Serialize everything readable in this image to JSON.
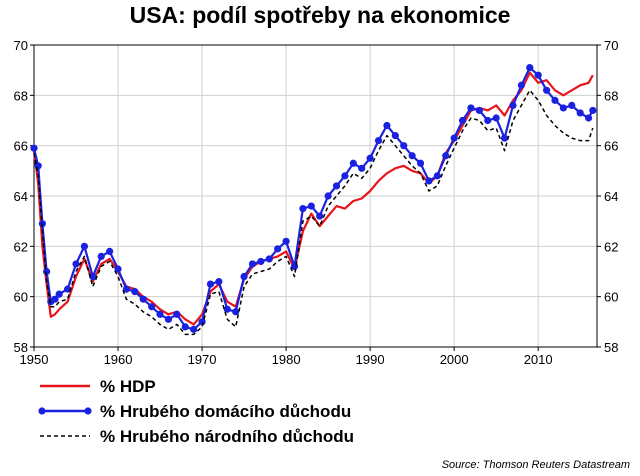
{
  "chart_data": {
    "type": "line",
    "title": "USA: podíl spotřeby na ekonomice",
    "source": "Source: Thomson Reuters Datastream",
    "xlim": [
      1950,
      2017
    ],
    "ylim": [
      58,
      70
    ],
    "x_ticks": [
      "1950",
      "1960",
      "1970",
      "1980",
      "1990",
      "2000",
      "2010"
    ],
    "y_ticks": [
      "58",
      "60",
      "62",
      "64",
      "66",
      "68",
      "70"
    ],
    "grid": true,
    "legend_position": "bottom-left",
    "series": [
      {
        "name": "% HDP",
        "color": "#e8141c",
        "style": "solid",
        "x": [
          1950,
          1950.5,
          1951,
          1951.5,
          1952,
          1952.5,
          1953,
          1954,
          1955,
          1956,
          1957,
          1958,
          1959,
          1960,
          1961,
          1962,
          1963,
          1964,
          1965,
          1966,
          1967,
          1968,
          1969,
          1970,
          1971,
          1972,
          1973,
          1974,
          1975,
          1976,
          1977,
          1978,
          1979,
          1980,
          1981,
          1982,
          1983,
          1984,
          1985,
          1986,
          1987,
          1988,
          1989,
          1990,
          1991,
          1992,
          1993,
          1994,
          1995,
          1996,
          1997,
          1998,
          1999,
          2000,
          2001,
          2002,
          2003,
          2004,
          2005,
          2006,
          2007,
          2008,
          2009,
          2010,
          2011,
          2012,
          2013,
          2014,
          2015,
          2016,
          2016.5
        ],
        "y": [
          65.8,
          64.5,
          62.0,
          60.5,
          59.2,
          59.3,
          59.5,
          59.8,
          60.8,
          61.5,
          60.6,
          61.3,
          61.5,
          61.0,
          60.4,
          60.3,
          60.0,
          59.8,
          59.5,
          59.3,
          59.4,
          59.1,
          58.9,
          59.3,
          60.2,
          60.5,
          59.8,
          59.6,
          60.7,
          61.2,
          61.4,
          61.5,
          61.6,
          61.8,
          61.1,
          62.6,
          63.3,
          62.8,
          63.2,
          63.6,
          63.5,
          63.8,
          63.9,
          64.2,
          64.6,
          64.9,
          65.1,
          65.2,
          65.0,
          64.9,
          64.5,
          64.8,
          65.7,
          66.2,
          66.8,
          67.4,
          67.5,
          67.4,
          67.6,
          67.2,
          67.8,
          68.2,
          68.9,
          68.5,
          68.6,
          68.2,
          68.0,
          68.2,
          68.4,
          68.5,
          68.8
        ]
      },
      {
        "name": "% Hrubého domácího důchodu",
        "color": "#1a22e0",
        "style": "solid-markers",
        "x": [
          1950,
          1950.5,
          1951,
          1951.5,
          1952,
          1952.5,
          1953,
          1954,
          1955,
          1956,
          1957,
          1958,
          1959,
          1960,
          1961,
          1962,
          1963,
          1964,
          1965,
          1966,
          1967,
          1968,
          1969,
          1970,
          1971,
          1972,
          1973,
          1974,
          1975,
          1976,
          1977,
          1978,
          1979,
          1980,
          1981,
          1982,
          1983,
          1984,
          1985,
          1986,
          1987,
          1988,
          1989,
          1990,
          1991,
          1992,
          1993,
          1994,
          1995,
          1996,
          1997,
          1998,
          1999,
          2000,
          2001,
          2002,
          2003,
          2004,
          2005,
          2006,
          2007,
          2008,
          2009,
          2010,
          2011,
          2012,
          2013,
          2014,
          2015,
          2016,
          2016.5
        ],
        "y": [
          65.9,
          65.2,
          62.9,
          61.0,
          59.8,
          59.9,
          60.1,
          60.3,
          61.3,
          62.0,
          60.8,
          61.6,
          61.8,
          61.1,
          60.3,
          60.2,
          59.9,
          59.6,
          59.3,
          59.1,
          59.3,
          58.8,
          58.7,
          59.0,
          60.5,
          60.6,
          59.5,
          59.4,
          60.8,
          61.3,
          61.4,
          61.5,
          61.9,
          62.2,
          61.2,
          63.5,
          63.6,
          63.2,
          64.0,
          64.4,
          64.8,
          65.3,
          65.1,
          65.5,
          66.2,
          66.8,
          66.4,
          66.0,
          65.6,
          65.3,
          64.6,
          64.8,
          65.6,
          66.3,
          67.0,
          67.5,
          67.4,
          67.0,
          67.1,
          66.3,
          67.6,
          68.4,
          69.1,
          68.8,
          68.2,
          67.8,
          67.5,
          67.6,
          67.3,
          67.1,
          67.4
        ]
      },
      {
        "name": "% Hrubého národního důchodu",
        "color": "#000000",
        "style": "dashed",
        "x": [
          1950,
          1950.5,
          1951,
          1951.5,
          1952,
          1952.5,
          1953,
          1954,
          1955,
          1956,
          1957,
          1958,
          1959,
          1960,
          1961,
          1962,
          1963,
          1964,
          1965,
          1966,
          1967,
          1968,
          1969,
          1970,
          1971,
          1972,
          1973,
          1974,
          1975,
          1976,
          1977,
          1978,
          1979,
          1980,
          1981,
          1982,
          1983,
          1984,
          1985,
          1986,
          1987,
          1988,
          1989,
          1990,
          1991,
          1992,
          1993,
          1994,
          1995,
          1996,
          1997,
          1998,
          1999,
          2000,
          2001,
          2002,
          2003,
          2004,
          2005,
          2006,
          2007,
          2008,
          2009,
          2010,
          2011,
          2012,
          2013,
          2014,
          2015,
          2016,
          2016.5
        ],
        "y": [
          65.7,
          64.8,
          62.6,
          60.6,
          59.6,
          59.6,
          59.8,
          59.9,
          61.0,
          61.6,
          60.4,
          61.2,
          61.4,
          60.8,
          59.9,
          59.7,
          59.4,
          59.2,
          58.9,
          58.7,
          58.9,
          58.5,
          58.5,
          58.8,
          60.1,
          60.2,
          59.1,
          58.8,
          60.4,
          60.9,
          61.0,
          61.1,
          61.4,
          61.6,
          60.8,
          63.0,
          63.2,
          62.8,
          63.6,
          64.0,
          64.4,
          64.9,
          64.7,
          65.1,
          65.8,
          66.4,
          66.0,
          65.6,
          65.2,
          64.9,
          64.2,
          64.4,
          65.2,
          65.9,
          66.6,
          67.1,
          67.0,
          66.6,
          66.7,
          65.8,
          67.0,
          67.6,
          68.2,
          67.8,
          67.2,
          66.8,
          66.5,
          66.3,
          66.2,
          66.2,
          66.7
        ]
      }
    ]
  }
}
